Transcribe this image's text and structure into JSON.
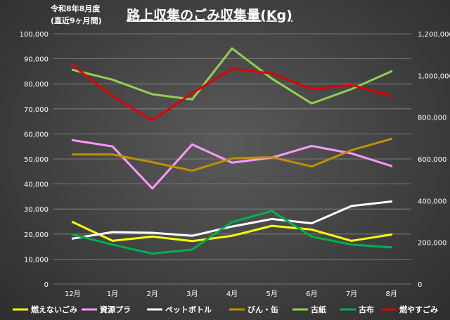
{
  "chart_data": {
    "type": "line",
    "title": "路上収集のごみ収集量(Kg)",
    "subtitle_lines": [
      "令和8年8月度",
      "(直近9ヶ月間)"
    ],
    "categories": [
      "12月",
      "1月",
      "2月",
      "3月",
      "4月",
      "5月",
      "6月",
      "7月",
      "8月"
    ],
    "left_axis": {
      "ylim": [
        0,
        100000
      ],
      "ticks": [
        "0",
        "10,000",
        "20,000",
        "30,000",
        "40,000",
        "50,000",
        "60,000",
        "70,000",
        "80,000",
        "90,000",
        "100,000"
      ]
    },
    "right_axis": {
      "ylim": [
        0,
        1200000
      ],
      "ticks": [
        "0",
        "200,000",
        "400,000",
        "600,000",
        "800,000",
        "1,000,000",
        "1,200,000"
      ]
    },
    "grid": true,
    "legend_position": "bottom",
    "series": [
      {
        "name": "燃えないごみ",
        "color": "#ffff00",
        "axis": "left",
        "values": [
          24800,
          17300,
          19000,
          17200,
          19300,
          23300,
          21800,
          17300,
          19800
        ]
      },
      {
        "name": "資源プラ",
        "color": "#ff99ff",
        "axis": "left",
        "values": [
          57500,
          55000,
          38200,
          55800,
          48500,
          50500,
          55200,
          52200,
          47200
        ]
      },
      {
        "name": "ペットボトル",
        "color": "#ffffff",
        "axis": "left",
        "values": [
          18200,
          20800,
          20500,
          19300,
          23000,
          26000,
          24300,
          31200,
          33000
        ]
      },
      {
        "name": "びん・缶",
        "color": "#bf8f00",
        "axis": "left",
        "values": [
          51800,
          51800,
          48700,
          45300,
          50200,
          50700,
          47000,
          53500,
          58000
        ]
      },
      {
        "name": "古紙",
        "color": "#92d050",
        "axis": "right",
        "values": [
          1027000,
          980000,
          910000,
          885000,
          1130000,
          985000,
          866000,
          935000,
          1020000
        ]
      },
      {
        "name": "古布",
        "color": "#00b050",
        "axis": "left",
        "values": [
          19800,
          15800,
          12200,
          13800,
          24800,
          29200,
          19000,
          15800,
          14700
        ]
      },
      {
        "name": "燃やすごみ",
        "color": "#e00000",
        "axis": "right",
        "values": [
          1050000,
          900000,
          785000,
          915000,
          1032000,
          1010000,
          935000,
          955000,
          902000
        ]
      }
    ]
  }
}
